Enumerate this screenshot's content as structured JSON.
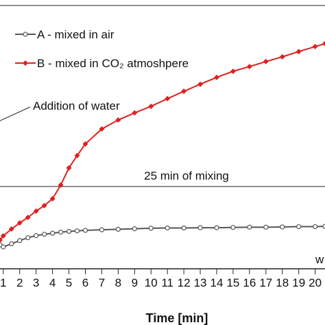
{
  "chart_data": {
    "type": "line",
    "x_label": "Time [min]",
    "x": [
      0.8,
      1,
      1.5,
      2,
      2.5,
      3,
      3.5,
      4,
      4.5,
      5,
      5.5,
      6,
      7,
      8,
      9,
      10,
      11,
      12,
      13,
      14,
      15,
      16,
      17,
      18,
      19,
      20,
      20.6
    ],
    "series": [
      {
        "name": "A - mixed in air",
        "color": "#555555",
        "marker": "circle",
        "values": [
          9.1,
          8.3,
          9.5,
          10.7,
          11.8,
          12.6,
          13.1,
          13.5,
          13.9,
          14.2,
          14.4,
          14.6,
          14.8,
          15.0,
          15.2,
          15.4,
          15.5,
          15.5,
          15.6,
          15.6,
          15.7,
          15.8,
          15.8,
          15.9,
          16.0,
          16.0,
          16.1
        ]
      },
      {
        "name": "B - mixed in CO₂ atmoshpere",
        "color": "#e02020",
        "marker": "diamond",
        "values": [
          10.9,
          12.5,
          15.1,
          17.4,
          19.5,
          21.9,
          24.0,
          26.6,
          31.8,
          38.3,
          43.0,
          47.4,
          53.1,
          56.5,
          59.2,
          61.7,
          64.6,
          67.4,
          70.1,
          72.7,
          75.0,
          76.8,
          78.7,
          80.5,
          82.5,
          84.4,
          85.5
        ]
      }
    ],
    "xlim": [
      0.8,
      20.6
    ],
    "xticks": [
      1,
      2,
      3,
      4,
      5,
      6,
      7,
      8,
      9,
      10,
      11,
      12,
      13,
      14,
      15,
      16,
      17,
      18,
      19,
      20
    ],
    "ylim": [
      0,
      100
    ],
    "hline": {
      "value": 31.25,
      "label": "25 min of mixing"
    },
    "annotations": [
      "Addition of water",
      "w"
    ]
  }
}
